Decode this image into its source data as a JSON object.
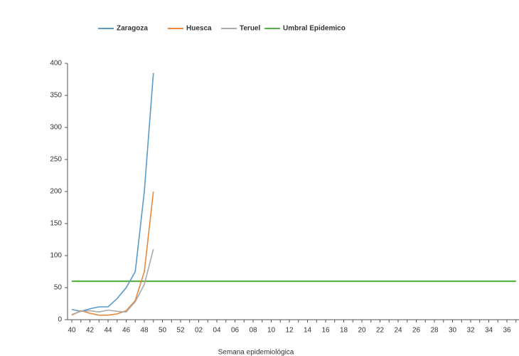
{
  "chart_data": {
    "type": "line",
    "x_label": "Semana epidemiológica",
    "categories": [
      "40",
      null,
      "42",
      null,
      "44",
      null,
      "46",
      null,
      "48",
      null,
      "50",
      null,
      "52",
      null,
      "02",
      null,
      "04",
      null,
      "06",
      null,
      "08",
      null,
      "10",
      null,
      "12",
      null,
      "14",
      null,
      "16",
      null,
      "18",
      null,
      "20",
      null,
      "22",
      null,
      "24",
      null,
      "26",
      null,
      "28",
      null,
      "30",
      null,
      "32",
      null,
      "34",
      null,
      "36",
      null
    ],
    "series": [
      {
        "name": "Zaragoza",
        "color": "#5b9bc8",
        "values": [
          16,
          13,
          17,
          20,
          20,
          33,
          50,
          75,
          200,
          385,
          null,
          null,
          null,
          null,
          null,
          null,
          null,
          null,
          null,
          null,
          null,
          null,
          null,
          null,
          null,
          null,
          null,
          null,
          null,
          null,
          null,
          null,
          null,
          null,
          null,
          null,
          null,
          null,
          null,
          null,
          null,
          null,
          null,
          null,
          null,
          null,
          null,
          null,
          null,
          null
        ]
      },
      {
        "name": "Huesca",
        "color": "#e8883a",
        "values": [
          7,
          14,
          10,
          7,
          7,
          9,
          14,
          30,
          75,
          200,
          null,
          null,
          null,
          null,
          null,
          null,
          null,
          null,
          null,
          null,
          null,
          null,
          null,
          null,
          null,
          null,
          null,
          null,
          null,
          null,
          null,
          null,
          null,
          null,
          null,
          null,
          null,
          null,
          null,
          null,
          null,
          null,
          null,
          null,
          null,
          null,
          null,
          null,
          null,
          null
        ]
      },
      {
        "name": "Teruel",
        "color": "#aaaaaa",
        "values": [
          8,
          13,
          14,
          12,
          15,
          13,
          12,
          28,
          55,
          110,
          null,
          null,
          null,
          null,
          null,
          null,
          null,
          null,
          null,
          null,
          null,
          null,
          null,
          null,
          null,
          null,
          null,
          null,
          null,
          null,
          null,
          null,
          null,
          null,
          null,
          null,
          null,
          null,
          null,
          null,
          null,
          null,
          null,
          null,
          null,
          null,
          null,
          null,
          null,
          null
        ]
      },
      {
        "name": "Umbral Epidemico",
        "color": "#5cb345",
        "values": [
          60,
          60,
          60,
          60,
          60,
          60,
          60,
          60,
          60,
          60,
          60,
          60,
          60,
          60,
          60,
          60,
          60,
          60,
          60,
          60,
          60,
          60,
          60,
          60,
          60,
          60,
          60,
          60,
          60,
          60,
          60,
          60,
          60,
          60,
          60,
          60,
          60,
          60,
          60,
          60,
          60,
          60,
          60,
          60,
          60,
          60,
          60,
          60,
          60,
          60
        ]
      }
    ],
    "ylim": [
      0,
      400
    ],
    "yticks": [
      0,
      50,
      100,
      150,
      200,
      250,
      300,
      350,
      400
    ],
    "grid": false,
    "legend": "top"
  }
}
